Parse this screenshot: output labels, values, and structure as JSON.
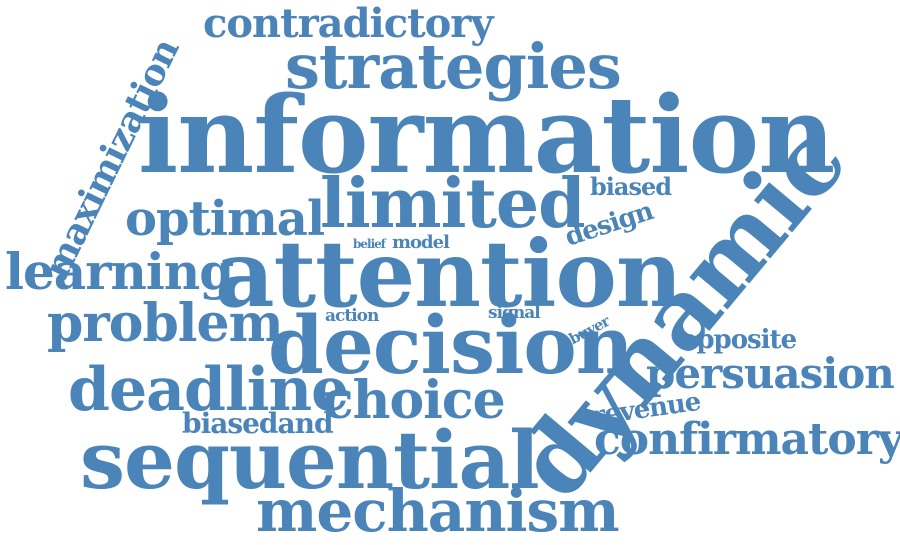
{
  "color": "#4a84b8",
  "words": {
    "information": "information",
    "attention": "attention",
    "dynamic": "dynamic",
    "sequential": "sequential",
    "decision": "decision",
    "limited": "limited",
    "strategies": "strategies",
    "mechanism": "mechanism",
    "contradictory": "contradictory",
    "maximization": "maximization",
    "optimal": "optimal",
    "learning": "learning",
    "problem": "problem",
    "deadline": "deadline",
    "choice": "choice",
    "biasedand": "biasedand",
    "persuasion": "persuasion",
    "confirmatory": "confirmatory",
    "opposite": "opposite",
    "revenue": "revenue",
    "design": "design",
    "biased": "biased",
    "belief": "belief",
    "model": "model",
    "action": "action",
    "signal": "signal",
    "buyer": "buyer"
  }
}
